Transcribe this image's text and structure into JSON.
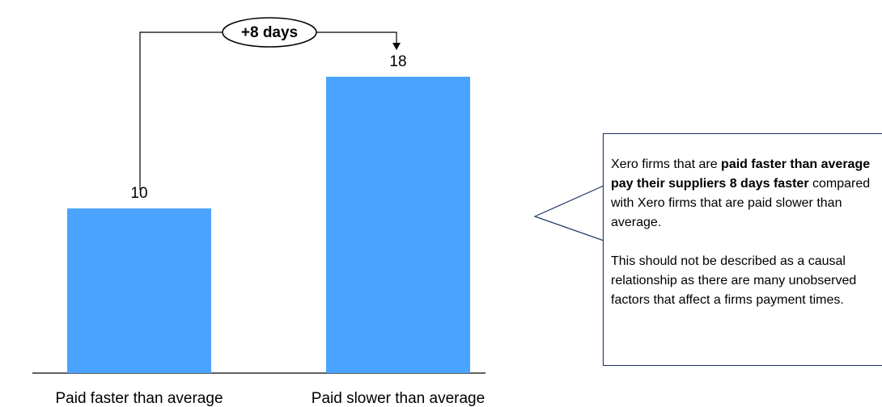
{
  "chart_data": {
    "type": "bar",
    "categories": [
      "Paid faster than average",
      "Paid slower than average"
    ],
    "values": [
      10,
      18
    ],
    "color": "#4aa3ff",
    "annotation": "+8 days",
    "callout": {
      "paragraph_1": [
        "Xero firms that are ",
        "paid faster than average pay their suppliers 8 days faster",
        " compared with Xero firms that are paid slower than average."
      ],
      "paragraph_2": "This should not be described as a causal relationship as there are many unobserved factors that affect a firms payment times."
    }
  }
}
